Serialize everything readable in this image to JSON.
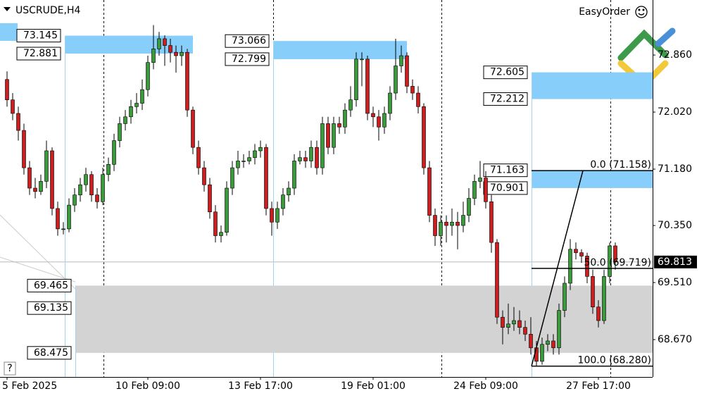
{
  "chart_data": {
    "type": "candlestick",
    "title": "USCRUDE,H4",
    "panel_label": "EasyOrder",
    "help_label": "?",
    "ylim": [
      68.12,
      73.67
    ],
    "yticks": [
      {
        "value": 72.86,
        "label": "72.860"
      },
      {
        "value": 72.02,
        "label": "72.020"
      },
      {
        "value": 71.18,
        "label": "71.180"
      },
      {
        "value": 70.35,
        "label": "70.350"
      },
      {
        "value": 69.51,
        "label": "69.510"
      },
      {
        "value": 68.67,
        "label": "68.670"
      }
    ],
    "categories": [
      "5 Feb 2025",
      null,
      null,
      null,
      null,
      null,
      null,
      null,
      null,
      null,
      null,
      null,
      null,
      null,
      null,
      null,
      null,
      null,
      null,
      null,
      null,
      null,
      null,
      null,
      null,
      "10 Feb 09:00",
      null,
      null,
      null,
      null,
      null,
      null,
      null,
      null,
      null,
      null,
      null,
      null,
      null,
      null,
      null,
      null,
      null,
      null,
      null,
      "13 Feb 17:00",
      null,
      null,
      null,
      null,
      null,
      null,
      null,
      null,
      null,
      null,
      null,
      null,
      null,
      null,
      null,
      null,
      null,
      null,
      null,
      "19 Feb 01:00",
      null,
      null,
      null,
      null,
      null,
      null,
      null,
      null,
      null,
      null,
      null,
      null,
      null,
      null,
      null,
      null,
      null,
      null,
      null,
      "24 Feb 09:00",
      null,
      null,
      null,
      null,
      null,
      null,
      null,
      null,
      null,
      null,
      null,
      null,
      null,
      null,
      null,
      null,
      null,
      null,
      null,
      "27 Feb 17:00",
      null,
      null,
      null
    ],
    "open": [
      72.5,
      72.2,
      72.0,
      71.75,
      71.2,
      70.9,
      70.85,
      71.0,
      71.45,
      70.6,
      70.3,
      70.3,
      70.65,
      70.8,
      70.95,
      71.1,
      70.8,
      70.7,
      71.1,
      71.25,
      71.6,
      71.85,
      71.95,
      72.1,
      72.15,
      72.35,
      72.75,
      72.95,
      73.1,
      73.0,
      72.9,
      72.85,
      72.9,
      72.05,
      71.5,
      71.2,
      70.95,
      70.55,
      70.2,
      70.25,
      70.9,
      71.2,
      71.3,
      71.3,
      71.35,
      71.45,
      71.5,
      70.6,
      70.4,
      70.6,
      70.8,
      70.9,
      71.3,
      71.35,
      71.3,
      71.5,
      71.2,
      71.85,
      71.5,
      71.85,
      71.8,
      72.05,
      72.2,
      72.8,
      72.8,
      72.0,
      71.95,
      71.8,
      72.0,
      72.3,
      72.7,
      72.85,
      72.4,
      72.3,
      72.1,
      71.2,
      70.5,
      70.2,
      70.4,
      70.35,
      70.4,
      70.35,
      70.5,
      70.75,
      71.0,
      71.05,
      70.7,
      70.1,
      69.0,
      68.85,
      68.9,
      68.95,
      68.85,
      68.75,
      68.55,
      68.35,
      68.6,
      68.65,
      68.55,
      69.1,
      69.5,
      70.0,
      69.95,
      69.9,
      69.6,
      69.15,
      68.95,
      69.6,
      70.05
    ],
    "high": [
      72.62,
      72.3,
      72.1,
      71.85,
      71.3,
      71.05,
      71.1,
      71.6,
      71.5,
      70.7,
      70.4,
      70.75,
      70.9,
      71.05,
      71.2,
      71.15,
      70.9,
      71.2,
      71.35,
      71.7,
      71.95,
      72.05,
      72.2,
      72.3,
      72.5,
      72.85,
      73.3,
      73.2,
      73.15,
      73.1,
      73.0,
      73.0,
      72.95,
      72.1,
      71.6,
      71.3,
      71.05,
      70.65,
      70.35,
      71.0,
      71.3,
      71.45,
      71.4,
      71.45,
      71.55,
      71.6,
      71.55,
      70.7,
      70.7,
      70.9,
      71.0,
      71.4,
      71.45,
      71.45,
      71.6,
      71.6,
      71.95,
      71.95,
      71.95,
      71.95,
      72.15,
      72.4,
      72.9,
      72.9,
      72.85,
      72.1,
      72.05,
      72.1,
      72.4,
      73.1,
      73.0,
      72.9,
      72.5,
      72.4,
      72.15,
      71.3,
      70.6,
      70.5,
      70.5,
      70.6,
      70.55,
      70.7,
      70.9,
      71.1,
      71.3,
      71.15,
      70.8,
      70.15,
      69.1,
      69.2,
      69.15,
      69.1,
      68.95,
      69.0,
      68.65,
      68.7,
      68.75,
      68.75,
      69.2,
      69.6,
      70.15,
      70.1,
      70.0,
      69.95,
      69.7,
      69.25,
      69.7,
      70.1,
      70.1
    ],
    "low": [
      72.1,
      71.9,
      71.6,
      71.1,
      70.8,
      70.75,
      70.8,
      70.9,
      70.5,
      70.2,
      70.22,
      70.25,
      70.55,
      70.7,
      70.85,
      70.7,
      70.6,
      70.65,
      71.0,
      71.15,
      71.5,
      71.75,
      71.85,
      72.0,
      72.05,
      72.25,
      72.65,
      72.85,
      72.7,
      72.75,
      72.6,
      72.7,
      71.95,
      71.4,
      71.1,
      70.85,
      70.45,
      70.1,
      70.1,
      70.2,
      70.8,
      71.1,
      71.2,
      71.25,
      71.25,
      71.35,
      70.5,
      70.2,
      70.3,
      70.5,
      70.7,
      70.8,
      71.25,
      71.2,
      71.2,
      71.1,
      71.1,
      71.4,
      71.4,
      71.7,
      71.7,
      71.95,
      72.1,
      72.4,
      71.9,
      71.8,
      71.6,
      71.7,
      71.9,
      72.2,
      72.6,
      72.3,
      72.2,
      72.0,
      71.1,
      70.4,
      70.05,
      70.05,
      70.1,
      70.2,
      70.0,
      70.25,
      70.4,
      70.65,
      70.9,
      70.6,
      69.95,
      68.9,
      68.6,
      68.75,
      68.8,
      68.75,
      68.65,
      68.45,
      68.28,
      68.3,
      68.5,
      68.45,
      68.45,
      69.0,
      69.4,
      69.85,
      69.8,
      69.5,
      69.05,
      68.85,
      68.9,
      69.5,
      69.7
    ],
    "close": [
      72.2,
      72.0,
      71.75,
      71.2,
      70.9,
      70.85,
      71.0,
      71.45,
      70.6,
      70.3,
      70.3,
      70.65,
      70.8,
      70.95,
      71.1,
      70.8,
      70.7,
      71.1,
      71.25,
      71.6,
      71.85,
      71.95,
      72.1,
      72.15,
      72.35,
      72.75,
      72.95,
      73.1,
      73.0,
      72.9,
      72.85,
      72.9,
      72.05,
      71.5,
      71.2,
      70.95,
      70.55,
      70.2,
      70.25,
      70.9,
      71.2,
      71.3,
      71.3,
      71.35,
      71.45,
      71.5,
      70.6,
      70.4,
      70.6,
      70.8,
      70.9,
      71.3,
      71.35,
      71.3,
      71.5,
      71.2,
      71.85,
      71.5,
      71.85,
      71.8,
      72.05,
      72.2,
      72.8,
      72.8,
      72.0,
      71.95,
      71.8,
      72.0,
      72.3,
      72.7,
      72.85,
      72.4,
      72.3,
      72.1,
      71.2,
      70.5,
      70.2,
      70.4,
      70.35,
      70.4,
      70.35,
      70.5,
      70.75,
      71.0,
      71.05,
      70.7,
      70.1,
      69.0,
      68.85,
      68.9,
      68.95,
      68.85,
      68.75,
      68.55,
      68.35,
      68.6,
      68.65,
      68.55,
      69.1,
      69.5,
      70.0,
      69.95,
      69.9,
      69.6,
      69.15,
      68.95,
      69.6,
      70.05,
      69.813
    ],
    "up_color": "#3c9a3c",
    "down_color": "#c82020",
    "zones": [
      {
        "high": 73.145,
        "low": 72.881,
        "color": "#87cefa"
      },
      {
        "high": 73.066,
        "low": 72.799,
        "color": "#87cefa"
      },
      {
        "high": 72.605,
        "low": 72.212,
        "color": "#87cefa"
      },
      {
        "high": 71.163,
        "low": 70.901,
        "color": "#87cefa"
      },
      {
        "high": 69.465,
        "mid": 69.135,
        "low": 68.475,
        "color": "#d3d3d3"
      }
    ],
    "fibonacci": [
      {
        "value": 71.158,
        "label": "0.0 (71.158)"
      },
      {
        "value": 69.719,
        "label": "50.0 (69.719)"
      },
      {
        "value": 68.28,
        "label": "100.0 (68.280)"
      }
    ],
    "current_price": 69.813
  }
}
